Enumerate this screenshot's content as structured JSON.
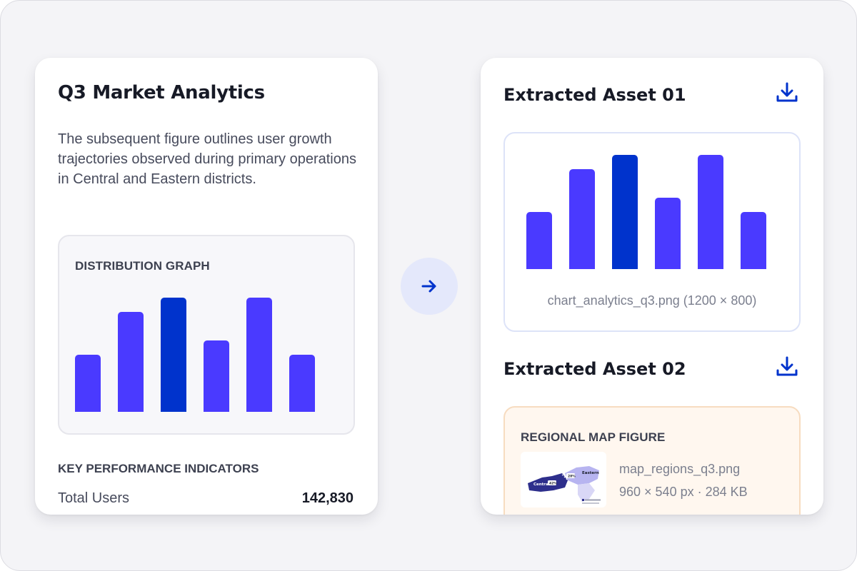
{
  "document": {
    "title": "Q3 Market Analytics",
    "body": "The subsequent figure outlines user growth trajectories observed during primary operations in Central and Eastern districts.",
    "figure_label": "DISTRIBUTION GRAPH",
    "kpi_title": "KEY PERFORMANCE INDICATORS",
    "kpi": {
      "label": "Total Users",
      "value": "142,830"
    }
  },
  "transform_icon": "arrow-right-icon",
  "assets": [
    {
      "title": "Extracted Asset 01",
      "icon": "download-icon",
      "caption": "chart_analytics_q3.png (1200 × 800)"
    },
    {
      "title": "Extracted Asset 02",
      "icon": "download-icon",
      "figure_label": "REGIONAL MAP FIGURE",
      "file_name": "map_regions_q3.png",
      "file_meta": "960 × 540 px · 284 KB",
      "map_labels": {
        "central": "Central",
        "eastern": "Eastern",
        "central_pct": "42%",
        "eastern_pct": "28%"
      }
    }
  ],
  "chart_data": [
    {
      "type": "bar",
      "title": "DISTRIBUTION GRAPH",
      "categories": [
        "",
        "",
        "",
        "",
        "",
        ""
      ],
      "values": [
        50,
        87.5,
        100,
        62.5,
        100,
        50
      ],
      "ylim": [
        0,
        100
      ],
      "highlight_index": 2,
      "colors": {
        "bar": "#4a3aff",
        "highlight": "#0033cc"
      }
    },
    {
      "type": "bar",
      "title": "",
      "categories": [
        "",
        "",
        "",
        "",
        "",
        ""
      ],
      "values": [
        50,
        87.5,
        100,
        62.5,
        100,
        50
      ],
      "ylim": [
        0,
        100
      ],
      "highlight_index": 2,
      "colors": {
        "bar": "#4a3aff",
        "highlight": "#0033cc"
      }
    }
  ],
  "colors": {
    "accent": "#0033cc",
    "bar": "#4a3aff",
    "arrow_bg": "#e4e8fb",
    "map_central": "#2e2f8c",
    "map_eastern": "#b7b4f0"
  }
}
